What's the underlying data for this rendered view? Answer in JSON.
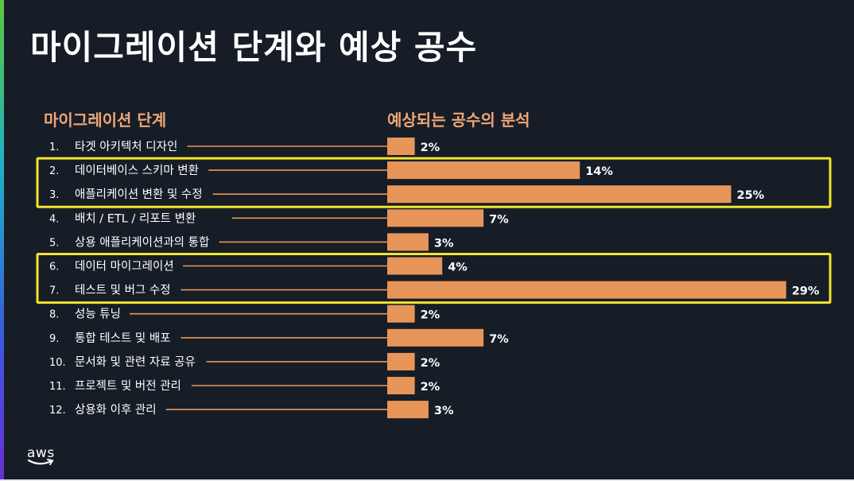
{
  "title": "마이그레이션 단계와 예상 공수",
  "left_header": "마이그레이션 단계",
  "right_header": "예상되는 공수의 분석",
  "logo_text": "aws",
  "colors": {
    "background": "#161d27",
    "bar": "#e8955a",
    "header": "#f0a676",
    "highlight_box": "#f2e52c",
    "text": "#ffffff"
  },
  "chart_data": {
    "type": "bar",
    "orientation": "horizontal",
    "categories": [
      "1.|타겟 아키텍처 디자인",
      "2.|데이터베이스 스키마 변환",
      "3.|애플리케이션 변환 및 수정",
      "4.|배치 / ETL / 리포트 변환",
      "5.|상용 애플리케이션과의 통합",
      "6.|데이터 마이그레이션",
      "7.|테스트 및 버그 수정",
      "8.|성능 튜닝",
      "9.|통합 테스트 및 배포",
      "10.|문서화 및 관련 자료 공유",
      "11.|프로젝트 및 버전 관리",
      "12.|상용화 이후 관리"
    ],
    "values": [
      2,
      14,
      25,
      7,
      3,
      4,
      29,
      2,
      7,
      2,
      2,
      3
    ],
    "value_labels": [
      "2%",
      "14%",
      "25%",
      "7%",
      "3%",
      "4%",
      "29%",
      "2%",
      "7%",
      "2%",
      "2%",
      "3%"
    ],
    "unit": "%",
    "highlight_groups": [
      [
        2,
        3
      ],
      [
        6,
        7
      ]
    ]
  }
}
